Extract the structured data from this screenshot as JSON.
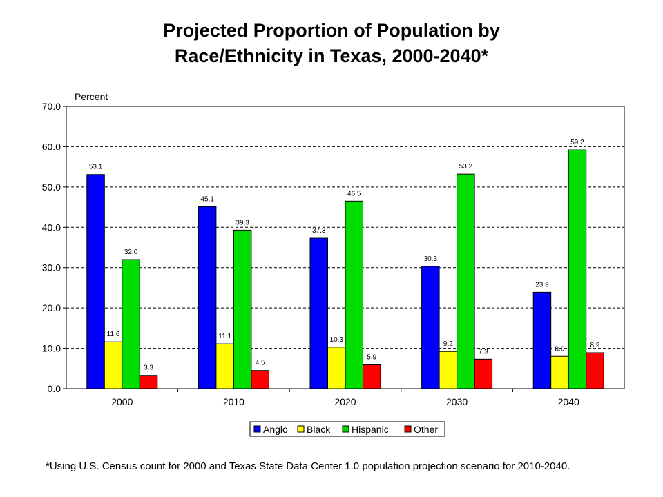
{
  "title_line1": "Projected Proportion of Population by",
  "title_line2": "Race/Ethnicity in Texas, 2000-2040*",
  "footnote": "*Using U.S. Census count for 2000 and Texas State Data Center 1.0 population projection scenario for 2010-2040.",
  "chart_data": {
    "type": "bar",
    "title": "Projected Proportion of Population by Race/Ethnicity in Texas, 2000-2040*",
    "ylabel": "Percent",
    "xlabel": "",
    "ylim": [
      0,
      70
    ],
    "y_ticks": [
      "0.0",
      "10.0",
      "20.0",
      "30.0",
      "40.0",
      "50.0",
      "60.0",
      "70.0"
    ],
    "grid": "horizontal dashed",
    "legend_position": "bottom",
    "categories": [
      "2000",
      "2010",
      "2020",
      "2030",
      "2040"
    ],
    "series": [
      {
        "name": "Anglo",
        "color": "#0000ff",
        "values": [
          53.1,
          45.1,
          37.3,
          30.3,
          23.9
        ],
        "labels": [
          "53.1",
          "45.1",
          "37.3",
          "30.3",
          "23.9"
        ]
      },
      {
        "name": "Black",
        "color": "#ffff00",
        "values": [
          11.6,
          11.1,
          10.3,
          9.2,
          8.0
        ],
        "labels": [
          "11.6",
          "11.1",
          "10.3",
          "9.2",
          "8.0"
        ]
      },
      {
        "name": "Hispanic",
        "color": "#00dd00",
        "values": [
          32.0,
          39.3,
          46.5,
          53.2,
          59.2
        ],
        "labels": [
          "32.0",
          "39.3",
          "46.5",
          "53.2",
          "59.2"
        ]
      },
      {
        "name": "Other",
        "color": "#ff0000",
        "values": [
          3.3,
          4.5,
          5.9,
          7.3,
          8.9
        ],
        "labels": [
          "3.3",
          "4.5",
          "5.9",
          "7.3",
          "8.9"
        ]
      }
    ]
  }
}
